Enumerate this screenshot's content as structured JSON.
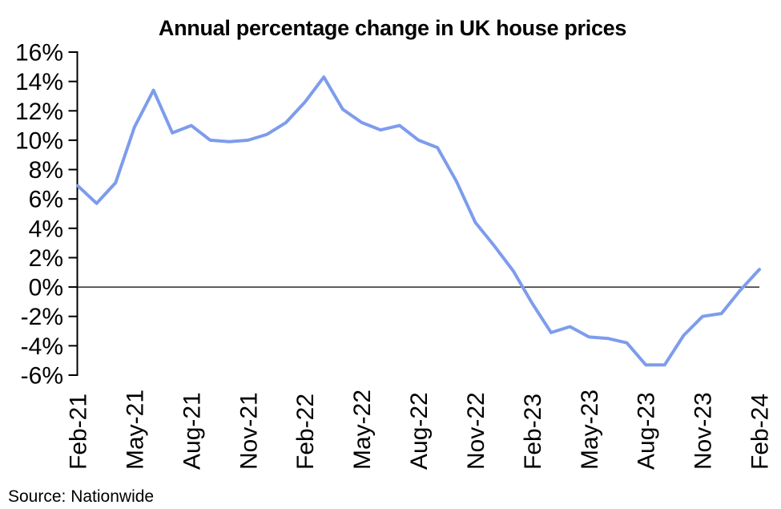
{
  "chart_data": {
    "type": "line",
    "title": "Annual percentage change in UK house prices",
    "source": "Source: Nationwide",
    "series_name": "Annual percentage change in UK house prices",
    "x": [
      "Feb-21",
      "Mar-21",
      "Apr-21",
      "May-21",
      "Jun-21",
      "Jul-21",
      "Aug-21",
      "Sep-21",
      "Oct-21",
      "Nov-21",
      "Dec-21",
      "Jan-22",
      "Feb-22",
      "Mar-22",
      "Apr-22",
      "May-22",
      "Jun-22",
      "Jul-22",
      "Aug-22",
      "Sep-22",
      "Oct-22",
      "Nov-22",
      "Dec-22",
      "Jan-23",
      "Feb-23",
      "Mar-23",
      "Apr-23",
      "May-23",
      "Jun-23",
      "Jul-23",
      "Aug-23",
      "Sep-23",
      "Oct-23",
      "Nov-23",
      "Dec-23",
      "Jan-24",
      "Feb-24"
    ],
    "values": [
      6.9,
      5.7,
      7.1,
      10.9,
      13.4,
      10.5,
      11.0,
      10.0,
      9.9,
      10.0,
      10.4,
      11.2,
      12.6,
      14.3,
      12.1,
      11.2,
      10.7,
      11.0,
      10.0,
      9.5,
      7.2,
      4.4,
      2.8,
      1.1,
      -1.1,
      -3.1,
      -2.7,
      -3.4,
      -3.5,
      -3.8,
      -5.3,
      -5.3,
      -3.3,
      -2.0,
      -1.8,
      -0.2,
      1.2
    ],
    "x_tick_step": 3,
    "x_tick_labels": [
      "Feb-21",
      "May-21",
      "Aug-21",
      "Nov-21",
      "Feb-22",
      "May-22",
      "Aug-22",
      "Nov-22",
      "Feb-23",
      "May-23",
      "Aug-23",
      "Nov-23",
      "Feb-24"
    ],
    "y_ticks": [
      16,
      14,
      12,
      10,
      8,
      6,
      4,
      2,
      0,
      -2,
      -4,
      -6
    ],
    "y_tick_suffix": "%",
    "ylim": [
      -6,
      16
    ],
    "zero_line": true,
    "grid": false,
    "legend_position": "none",
    "line_color": "#7D9CEC",
    "title_color": "#0E2250",
    "axis_color": "#000000"
  }
}
